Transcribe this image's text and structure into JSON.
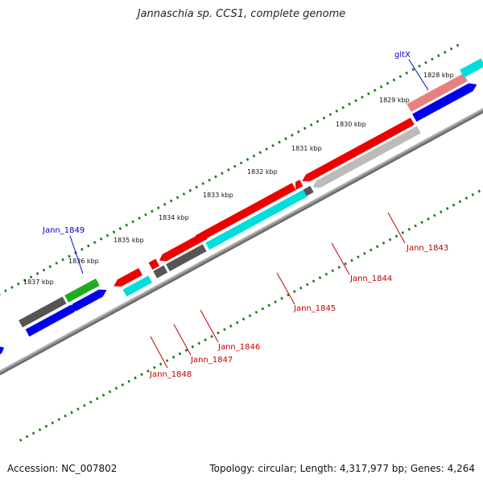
{
  "title": "Jannaschia sp. CCS1, complete genome",
  "accession_text": "Accession: NC_007802",
  "topology_text": "Topology: circular; Length: 4,317,977 bp; Genes: 4,264",
  "ticks": [
    "1828 kbp",
    "1829 kbp",
    "1830 kbp",
    "1831 kbp",
    "1832 kbp",
    "1833 kbp",
    "1834 kbp",
    "1835 kbp",
    "1836 kbp",
    "1837 kbp"
  ],
  "gene_labels": {
    "gltX": "gltX",
    "jann_1849": "Jann_1849",
    "jann_1843": "Jann_1843",
    "jann_1844": "Jann_1844",
    "jann_1845": "Jann_1845",
    "jann_1846": "Jann_1846",
    "jann_1847": "Jann_1847",
    "jann_1848": "Jann_1848"
  },
  "colors": {
    "red": "#ee0000",
    "pink": "#e98080",
    "cyan": "#00dddd",
    "blue": "#0000ee",
    "green": "#22aa22",
    "dark_gray": "#555555",
    "light_gray": "#bbbbbb",
    "backbone": "#888888",
    "tick": "#1a7a1a"
  }
}
